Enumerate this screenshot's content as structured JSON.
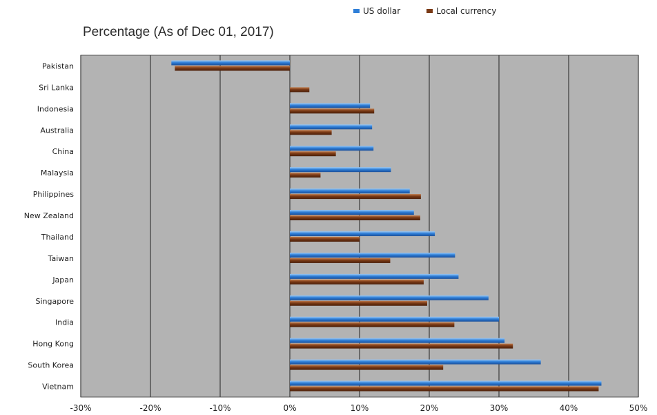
{
  "chart_data": {
    "type": "bar",
    "orientation": "horizontal",
    "title": "Percentage (As of Dec 01, 2017)",
    "categories": [
      "Pakistan",
      "Sri Lanka",
      "Indonesia",
      "Australia",
      "China",
      "Malaysia",
      "Philippines",
      "New Zealand",
      "Thailand",
      "Taiwan",
      "Japan",
      "Singapore",
      "India",
      "Hong Kong",
      "South Korea",
      "Vietnam"
    ],
    "series": [
      {
        "name": "US dollar",
        "color": "#2f7fd8",
        "values": [
          -17,
          0,
          11.5,
          11.8,
          12,
          14.5,
          17.2,
          17.8,
          20.8,
          23.7,
          24.2,
          28.5,
          30,
          30.8,
          36,
          44.7
        ]
      },
      {
        "name": "Local currency",
        "color": "#7a3a16",
        "values": [
          -16.5,
          2.8,
          12.1,
          6,
          6.6,
          4.4,
          18.8,
          18.7,
          10,
          14.4,
          19.2,
          19.7,
          23.6,
          32,
          22,
          44.3
        ]
      }
    ],
    "xlim": [
      -30,
      50
    ],
    "xticks": [
      "-30%",
      "-20%",
      "-10%",
      "0%",
      "10%",
      "20%",
      "30%",
      "40%",
      "50%"
    ],
    "tick_values": [
      -30,
      -20,
      -10,
      0,
      10,
      20,
      30,
      40,
      50
    ],
    "plot_background": "#b3b3b3",
    "grid": true,
    "legend_position": "top"
  }
}
